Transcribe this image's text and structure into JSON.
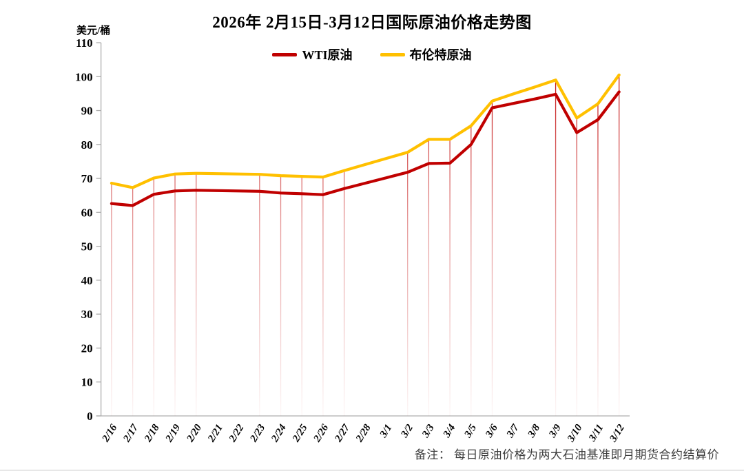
{
  "title": "2026年 2月15日-3月12日国际原油价格走势图",
  "y_axis_unit": "美元/桶",
  "footnote": "备注： 每日原油价格为两大石油基准即月期货合约结算价",
  "chart_data": {
    "type": "line",
    "title": "2026年 2月15日-3月12日国际原油价格走势图",
    "ylabel": "美元/桶",
    "xlabel": "",
    "ylim": [
      0,
      110
    ],
    "ytick_step": 10,
    "grid": false,
    "legend_position": "top-center",
    "axis_color": "#adadad",
    "dropline_color": "#C00000",
    "dropline_indices": [
      0,
      1,
      2,
      3,
      4,
      7,
      8,
      9,
      10,
      11,
      14,
      15,
      16,
      17,
      18,
      21,
      22,
      23,
      24
    ],
    "categories": [
      "2/16",
      "2/17",
      "2/18",
      "2/19",
      "2/20",
      "2/21",
      "2/22",
      "2/23",
      "2/24",
      "2/25",
      "2/26",
      "2/27",
      "2/28",
      "3/1",
      "3/2",
      "3/3",
      "3/4",
      "3/5",
      "3/6",
      "3/7",
      "3/8",
      "3/9",
      "3/10",
      "3/11",
      "3/12"
    ],
    "series": [
      {
        "name": "WTI原油",
        "color": "#C00000",
        "values": [
          62.6,
          62.0,
          65.3,
          66.3,
          66.5,
          66.4,
          66.3,
          66.2,
          65.7,
          65.5,
          65.2,
          67.0,
          68.6,
          70.2,
          71.8,
          74.4,
          74.5,
          80.0,
          90.8,
          92.1,
          93.4,
          94.8,
          83.5,
          87.3,
          95.5
        ]
      },
      {
        "name": "布伦特原油",
        "color": "#FFC000",
        "values": [
          68.6,
          67.3,
          70.1,
          71.3,
          71.5,
          71.4,
          71.3,
          71.2,
          70.8,
          70.6,
          70.4,
          72.3,
          74.1,
          75.9,
          77.7,
          81.5,
          81.5,
          85.5,
          92.8,
          94.9,
          96.9,
          99.0,
          87.8,
          92.0,
          100.5
        ]
      }
    ]
  }
}
